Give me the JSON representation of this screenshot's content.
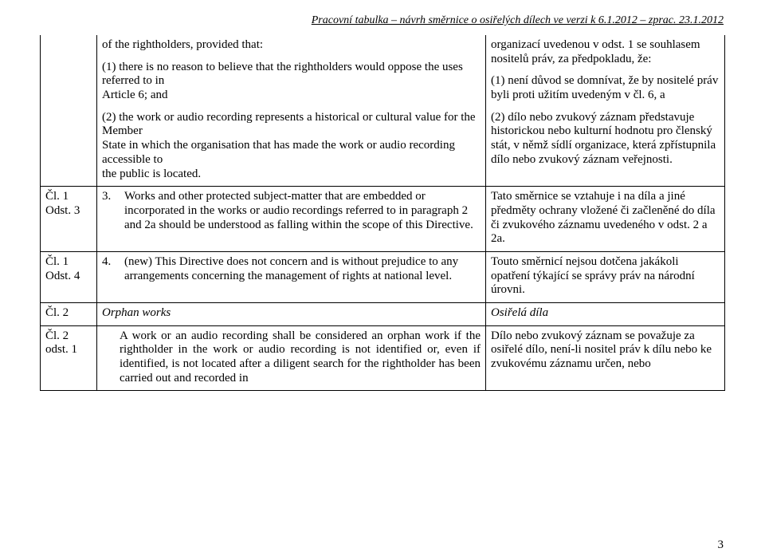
{
  "header": "Pracovní tabulka – návrh směrnice o osiřelých dílech ve verzi k 6.1.2012 – zprac. 23.1.2012",
  "pageNumber": "3",
  "rows": {
    "r0": {
      "label": "",
      "mid": {
        "p1": "of the rightholders, provided that:",
        "p2": "(1) there is no reason to believe that the rightholders would oppose the uses referred to in",
        "p2b": "Article 6; and",
        "p3": "(2) the work or audio recording represents a historical or cultural value for the Member",
        "p3b": "State in which the organisation that has made the work or audio recording accessible to",
        "p3c": "the public is located."
      },
      "right": {
        "p1": "organizací uvedenou v odst. 1 se souhlasem nositelů práv, za předpokladu, že:",
        "p2": "(1) není důvod se domnívat, že by nositelé práv byli proti užitím uvedeným v čl. 6, a",
        "p3": "(2) dílo nebo zvukový záznam představuje historickou nebo kulturní hodnotu pro členský stát, v němž sídlí organizace, která zpřístupnila dílo nebo zvukový záznam veřejnosti."
      }
    },
    "r1": {
      "labelA": "Čl. 1",
      "labelB": "Odst. 3",
      "midNum": "3.",
      "midTxt": "Works and other protected subject-matter that are embedded or incorporated in the works or audio recordings referred to in paragraph 2 and 2a should be understood as falling within the scope of this Directive.",
      "right": "Tato směrnice se vztahuje i na díla a jiné předměty ochrany vložené či začleněné do díla či zvukového záznamu uvedeného v odst. 2 a 2a."
    },
    "r2": {
      "labelA": "Čl. 1",
      "labelB": "Odst. 4",
      "midNum": "4.",
      "midTxt": "(new) This Directive does not concern and is without prejudice to any arrangements concerning the management of rights at national level.",
      "right": "Touto směrnicí nejsou dotčena jakákoli opatření týkající se správy práv na národní úrovni."
    },
    "r3": {
      "label": "Čl. 2",
      "mid": "Orphan works",
      "right": "Osiřelá díla"
    },
    "r4": {
      "labelA": "Čl. 2",
      "labelB": "odst. 1",
      "mid": "A work or an audio recording shall be considered an orphan work if the rightholder in the work or audio recording is not identified or, even if identified, is not located after a diligent search for the rightholder has been carried out and recorded in",
      "right": "Dílo nebo zvukový záznam se považuje za osiřelé dílo, není-li nositel práv k dílu nebo ke zvukovému záznamu určen, nebo"
    }
  }
}
